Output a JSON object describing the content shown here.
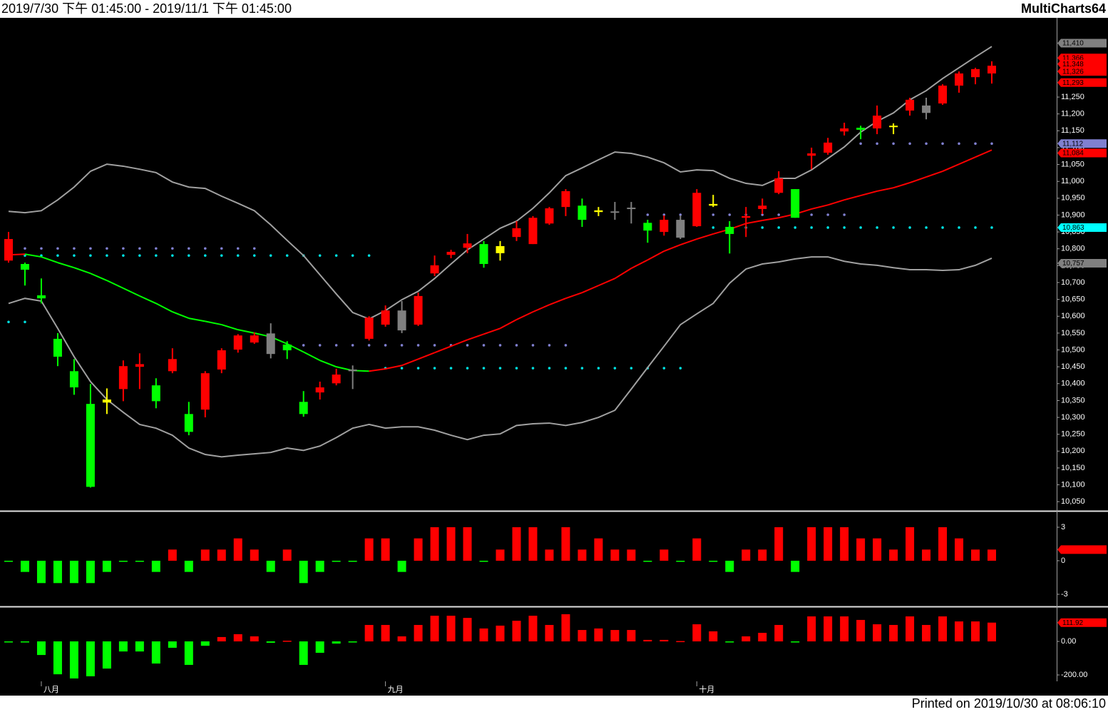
{
  "header": {
    "range": "2019/7/30 下午 01:45:00 - 2019/11/1 下午 01:45:00",
    "app": "MultiCharts64"
  },
  "footer": "Printed on 2019/10/30 at 08:06:10",
  "chart_data": [
    {
      "type": "candlestick",
      "categories": [
        null,
        null,
        "八月",
        null,
        null,
        null,
        null,
        null,
        null,
        null,
        null,
        null,
        null,
        null,
        null,
        null,
        null,
        null,
        null,
        null,
        null,
        null,
        null,
        "九月",
        null,
        null,
        null,
        null,
        null,
        null,
        null,
        null,
        null,
        null,
        null,
        null,
        null,
        null,
        null,
        null,
        null,
        null,
        "十月",
        null,
        null,
        null,
        null,
        null,
        null,
        null,
        null,
        null,
        null,
        null,
        null,
        null,
        null,
        null,
        null,
        null,
        null
      ],
      "open": [
        10765,
        10755,
        10662,
        10533,
        10437,
        10340,
        10353,
        10384,
        10450,
        10395,
        10437,
        10310,
        10323,
        10442,
        10501,
        10522,
        10549,
        10516,
        10346,
        10374,
        10401,
        10442,
        10533,
        10575,
        10617,
        10575,
        10727,
        10782,
        10803,
        10814,
        10808,
        10835,
        10814,
        10875,
        10924,
        10928,
        10914,
        10911,
        10922,
        10877,
        10850,
        10886,
        10867,
        10933,
        10865,
        10892,
        10918,
        10966,
        10977,
        11076,
        11085,
        11148,
        11159,
        11157,
        11165,
        11210,
        11225,
        11231,
        11284,
        11309,
        11320
      ],
      "high": [
        10850,
        10759,
        10712,
        10550,
        10473,
        10399,
        10386,
        10469,
        10490,
        10416,
        10505,
        10346,
        10437,
        10505,
        10547,
        10552,
        10579,
        10526,
        10378,
        10406,
        10444,
        10454,
        10600,
        10632,
        10645,
        10670,
        10780,
        10797,
        10844,
        10823,
        10823,
        10882,
        10897,
        10924,
        10977,
        10949,
        10924,
        10939,
        10939,
        10886,
        10899,
        10899,
        10977,
        10960,
        10882,
        10924,
        10949,
        11030,
        10977,
        11100,
        11129,
        11174,
        11165,
        11225,
        11172,
        11248,
        11248,
        11288,
        11326,
        11337,
        11356
      ],
      "low": [
        10759,
        10691,
        10638,
        10452,
        10367,
        10092,
        10310,
        10348,
        10384,
        10327,
        10431,
        10247,
        10300,
        10431,
        10492,
        10518,
        10475,
        10473,
        10302,
        10353,
        10395,
        10384,
        10528,
        10569,
        10550,
        10571,
        10719,
        10772,
        10787,
        10744,
        10765,
        10823,
        10814,
        10871,
        10897,
        10865,
        10897,
        10886,
        10875,
        10818,
        10839,
        10829,
        10865,
        10924,
        10786,
        10835,
        10903,
        10962,
        10892,
        11036,
        11079,
        11136,
        11125,
        11140,
        11140,
        11195,
        11184,
        11227,
        11263,
        11288,
        11290
      ],
      "close": [
        10829,
        10738,
        10653,
        10480,
        10389,
        10094,
        10344,
        10452,
        10458,
        10348,
        10473,
        10257,
        10431,
        10499,
        10543,
        10543,
        10488,
        10499,
        10310,
        10389,
        10427,
        10437,
        10596,
        10617,
        10558,
        10660,
        10751,
        10791,
        10816,
        10755,
        10787,
        10861,
        10892,
        10920,
        10971,
        10886,
        10909,
        10907,
        10918,
        10854,
        10886,
        10833,
        10966,
        10928,
        10844,
        10897,
        10928,
        11009,
        10892,
        11083,
        11115,
        11157,
        11153,
        11195,
        11161,
        11242,
        11203,
        11284,
        11320,
        11333,
        11343
      ],
      "colors": [
        "#ff0000",
        "#00ff00",
        "#00ff00",
        "#00ff00",
        "#00ff00",
        "#00ff00",
        "#ffff00",
        "#ff0000",
        "#ff0000",
        "#00ff00",
        "#ff0000",
        "#00ff00",
        "#ff0000",
        "#ff0000",
        "#ff0000",
        "#ff0000",
        "#808080",
        "#00ff00",
        "#00ff00",
        "#ff0000",
        "#ff0000",
        "#808080",
        "#ff0000",
        "#ff0000",
        "#808080",
        "#ff0000",
        "#ff0000",
        "#ff0000",
        "#ff0000",
        "#00ff00",
        "#ffff00",
        "#ff0000",
        "#ff0000",
        "#ff0000",
        "#ff0000",
        "#00ff00",
        "#ffff00",
        "#808080",
        "#808080",
        "#00ff00",
        "#ff0000",
        "#808080",
        "#ff0000",
        "#ffff00",
        "#00ff00",
        "#ff0000",
        "#ff0000",
        "#ff0000",
        "#00ff00",
        "#ff0000",
        "#ff0000",
        "#ff0000",
        "#00ff00",
        "#ff0000",
        "#ffff00",
        "#ff0000",
        "#808080",
        "#ff0000",
        "#ff0000",
        "#ff0000",
        "#ff0000"
      ],
      "lines": [
        {
          "color": "#a0a0a0",
          "values": [
            10911,
            10907,
            10913,
            10945,
            10983,
            11030,
            11051,
            11045,
            11036,
            11026,
            10998,
            10983,
            10979,
            10956,
            10935,
            10913,
            10871,
            10825,
            10780,
            10723,
            10666,
            10611,
            10592,
            10617,
            10649,
            10674,
            10712,
            10755,
            10797,
            10829,
            10861,
            10882,
            10920,
            10966,
            11017,
            11040,
            11064,
            11087,
            11083,
            11072,
            11055,
            11028,
            11034,
            11032,
            11009,
            10994,
            10988,
            11009,
            11009,
            11034,
            11068,
            11102,
            11146,
            11178,
            11203,
            11242,
            11269,
            11305,
            11337,
            11369,
            11400
          ]
        },
        {
          "color": "#a0a0a0",
          "values": [
            10638,
            10653,
            10645,
            10564,
            10480,
            10406,
            10353,
            10315,
            10279,
            10268,
            10247,
            10209,
            10190,
            10183,
            10188,
            10192,
            10196,
            10209,
            10202,
            10215,
            10240,
            10268,
            10279,
            10268,
            10272,
            10272,
            10262,
            10247,
            10234,
            10247,
            10251,
            10276,
            10281,
            10283,
            10276,
            10285,
            10300,
            10321,
            10384,
            10448,
            10511,
            10575,
            10607,
            10638,
            10698,
            10740,
            10755,
            10761,
            10770,
            10776,
            10776,
            10763,
            10755,
            10751,
            10744,
            10738,
            10738,
            10736,
            10738,
            10751,
            10772
          ]
        },
        {
          "colors": [
            "#ff0000",
            "#ff0000",
            "#00ff00",
            "#00ff00",
            "#00ff00",
            "#00ff00",
            "#00ff00",
            "#00ff00",
            "#00ff00",
            "#00ff00",
            "#00ff00",
            "#00ff00",
            "#00ff00",
            "#00ff00",
            "#00ff00",
            "#00ff00",
            "#00ff00",
            "#00ff00",
            "#00ff00",
            "#00ff00",
            "#00ff00",
            "#00ff00",
            "#00ff00",
            "#ff0000",
            "#ff0000",
            "#ff0000",
            "#ff0000",
            "#ff0000",
            "#ff0000",
            "#ff0000",
            "#ff0000",
            "#ff0000",
            "#ff0000",
            "#ff0000",
            "#ff0000",
            "#ff0000",
            "#ff0000",
            "#ff0000",
            "#ff0000",
            "#ff0000",
            "#ff0000",
            "#ff0000",
            "#ff0000",
            "#ff0000",
            "#ff0000",
            "#ff0000",
            "#ff0000",
            "#ff0000",
            "#ff0000",
            "#ff0000",
            "#ff0000",
            "#ff0000",
            "#ff0000",
            "#ff0000",
            "#ff0000",
            "#ff0000",
            "#ff0000",
            "#ff0000",
            "#ff0000",
            "#ff0000",
            "#ff0000"
          ],
          "values": [
            10782,
            10784,
            10776,
            10759,
            10744,
            10727,
            10706,
            10683,
            10660,
            10638,
            10613,
            10594,
            10585,
            10575,
            10560,
            10550,
            10539,
            10518,
            10494,
            10469,
            10450,
            10439,
            10437,
            10444,
            10454,
            10473,
            10492,
            10511,
            10530,
            10547,
            10564,
            10590,
            10613,
            10634,
            10653,
            10670,
            10691,
            10712,
            10742,
            10767,
            10793,
            10812,
            10829,
            10844,
            10858,
            10875,
            10884,
            10892,
            10903,
            10918,
            10930,
            10945,
            10958,
            10971,
            10981,
            10996,
            11013,
            11030,
            11051,
            11072,
            11093
          ]
        }
      ],
      "levels": [
        {
          "value": 10801,
          "start": 0,
          "end": 15,
          "color": "#8080d0"
        },
        {
          "value": 10780,
          "start": 0,
          "end": 22,
          "color": "#00e0e0"
        },
        {
          "value": 10583,
          "start": 0,
          "end": 1,
          "color": "#00e0e0"
        },
        {
          "value": 10514,
          "start": 17,
          "end": 34,
          "color": "#8080d0"
        },
        {
          "value": 10446,
          "start": 23,
          "end": 41,
          "color": "#00e0e0"
        },
        {
          "value": 10901,
          "start": 39,
          "end": 51,
          "color": "#8080d0"
        },
        {
          "value": 10863,
          "start": 43,
          "end": 60,
          "color": "#00e0e0"
        },
        {
          "value": 11112,
          "start": 52,
          "end": 60,
          "color": "#8080d0"
        }
      ],
      "tags": [
        {
          "value": 11410,
          "label": "11,410",
          "color": "#808080"
        },
        {
          "value": 11366,
          "label": "11,366",
          "color": "#ff0000"
        },
        {
          "value": 11348,
          "label": "11,348",
          "color": "#ff0000"
        },
        {
          "value": 11326,
          "label": "11,326",
          "color": "#ff0000"
        },
        {
          "value": 11293,
          "label": "11,293",
          "color": "#ff0000"
        },
        {
          "value": 11112,
          "label": "11,112",
          "color": "#8080d0"
        },
        {
          "value": 11084,
          "label": "11,084",
          "color": "#ff0000"
        },
        {
          "value": 10863,
          "label": "10,863",
          "color": "#00ffff"
        },
        {
          "value": 10757,
          "label": "10,757",
          "color": "#808080"
        }
      ],
      "ylim": [
        10025,
        11485
      ],
      "yticks": [
        {
          "value": 10050,
          "label": "10,050"
        },
        {
          "value": 10100,
          "label": "10,100"
        },
        {
          "value": 10150,
          "label": "10,150"
        },
        {
          "value": 10200,
          "label": "10,200"
        },
        {
          "value": 10250,
          "label": "10,250"
        },
        {
          "value": 10300,
          "label": "10,300"
        },
        {
          "value": 10350,
          "label": "10,350"
        },
        {
          "value": 10400,
          "label": "10,400"
        },
        {
          "value": 10450,
          "label": "10,450"
        },
        {
          "value": 10500,
          "label": "10,500"
        },
        {
          "value": 10550,
          "label": "10,550"
        },
        {
          "value": 10600,
          "label": "10,600"
        },
        {
          "value": 10650,
          "label": "10,650"
        },
        {
          "value": 10700,
          "label": "10,700"
        },
        {
          "value": 10750,
          "label": "10,750"
        },
        {
          "value": 10800,
          "label": "10,800"
        },
        {
          "value": 10850,
          "label": "10,850"
        },
        {
          "value": 10900,
          "label": "10,900"
        },
        {
          "value": 10950,
          "label": "10,950"
        },
        {
          "value": 11000,
          "label": "11,000"
        },
        {
          "value": 11050,
          "label": "11,050"
        },
        {
          "value": 11100,
          "label": "11,100"
        },
        {
          "value": 11150,
          "label": "11,150"
        },
        {
          "value": 11200,
          "label": "11,200"
        },
        {
          "value": 11250,
          "label": "11,250"
        }
      ]
    },
    {
      "type": "bar",
      "values": [
        0,
        -1,
        -2,
        -2,
        -2,
        -2,
        -1,
        0,
        0,
        -1,
        1,
        -1,
        1,
        1,
        2,
        1,
        -1,
        1,
        -2,
        -1,
        0,
        0,
        2,
        2,
        -1,
        2,
        3,
        3,
        3,
        0,
        1,
        3,
        3,
        1,
        3,
        1,
        2,
        1,
        1,
        0,
        1,
        0,
        2,
        0,
        -1,
        1,
        1,
        3,
        -1,
        3,
        3,
        3,
        2,
        2,
        1,
        3,
        1,
        3,
        2,
        1,
        1
      ],
      "up_color": "#ff0000",
      "down_color": "#00ff00",
      "ylim": [
        -3.96,
        4.34
      ],
      "yticks": [
        -3,
        0,
        3
      ],
      "tags": [
        {
          "value": 1,
          "color": "#ff0000"
        }
      ]
    },
    {
      "type": "bar",
      "values": [
        -5,
        -5,
        -81,
        -196,
        -221,
        -208,
        -162,
        -60,
        -60,
        -132,
        -38,
        -140,
        -26,
        26,
        43,
        30,
        -8,
        4,
        -140,
        -68,
        -13,
        -4,
        98,
        98,
        30,
        98,
        153,
        153,
        140,
        77,
        94,
        123,
        153,
        98,
        162,
        68,
        77,
        68,
        68,
        9,
        9,
        2,
        102,
        60,
        0,
        30,
        51,
        98,
        -5,
        149,
        149,
        149,
        128,
        102,
        98,
        149,
        98,
        149,
        119,
        119,
        111.92
      ],
      "up_color": "#ff0000",
      "down_color": "#00ff00",
      "ylim": [
        -238,
        200
      ],
      "yticks": [
        {
          "value": -200,
          "label": "-200.00"
        },
        {
          "value": 0,
          "label": "0.00"
        }
      ],
      "tags": [
        {
          "value": 111.92,
          "label": "111.92",
          "color": "#ff0000"
        }
      ]
    }
  ]
}
